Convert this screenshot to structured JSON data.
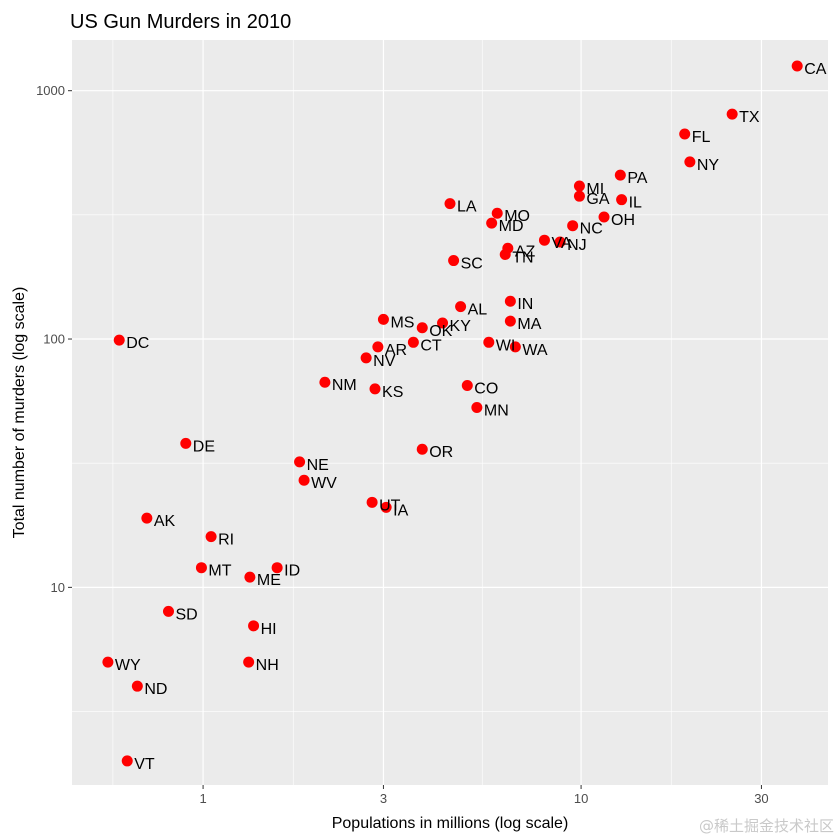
{
  "watermark": "@稀土掘金技术社区",
  "chart_data": {
    "type": "scatter",
    "title": "US Gun Murders in 2010",
    "xlabel": "Populations in millions (log scale)",
    "ylabel": "Total number of murders (log scale)",
    "x_scale": "log10",
    "y_scale": "log10",
    "xlim": [
      0.45,
      45
    ],
    "ylim": [
      1.6,
      1600
    ],
    "x_ticks": [
      1,
      3,
      10,
      30
    ],
    "x_tick_labels": [
      "1",
      "3",
      "10",
      "30"
    ],
    "y_ticks": [
      10,
      100,
      1000
    ],
    "y_tick_labels": [
      "10",
      "100",
      "1000"
    ],
    "grid": true,
    "legend": "none",
    "point_color": "#ff0000",
    "panel_color": "#ebebeb",
    "points": [
      {
        "label": "CA",
        "x": 37.3,
        "y": 1257
      },
      {
        "label": "TX",
        "x": 25.1,
        "y": 805
      },
      {
        "label": "FL",
        "x": 18.8,
        "y": 669
      },
      {
        "label": "NY",
        "x": 19.4,
        "y": 517
      },
      {
        "label": "PA",
        "x": 12.7,
        "y": 457
      },
      {
        "label": "MI",
        "x": 9.9,
        "y": 413
      },
      {
        "label": "GA",
        "x": 9.9,
        "y": 376
      },
      {
        "label": "IL",
        "x": 12.8,
        "y": 364
      },
      {
        "label": "LA",
        "x": 4.5,
        "y": 351
      },
      {
        "label": "MO",
        "x": 6.0,
        "y": 321
      },
      {
        "label": "OH",
        "x": 11.5,
        "y": 310
      },
      {
        "label": "MD",
        "x": 5.8,
        "y": 293
      },
      {
        "label": "NC",
        "x": 9.5,
        "y": 286
      },
      {
        "label": "VA",
        "x": 8.0,
        "y": 250
      },
      {
        "label": "NJ",
        "x": 8.8,
        "y": 246
      },
      {
        "label": "AZ",
        "x": 6.4,
        "y": 232
      },
      {
        "label": "TN",
        "x": 6.3,
        "y": 219
      },
      {
        "label": "SC",
        "x": 4.6,
        "y": 207
      },
      {
        "label": "IN",
        "x": 6.5,
        "y": 142
      },
      {
        "label": "AL",
        "x": 4.8,
        "y": 135
      },
      {
        "label": "MA",
        "x": 6.5,
        "y": 118
      },
      {
        "label": "MS",
        "x": 3.0,
        "y": 120
      },
      {
        "label": "OK",
        "x": 3.8,
        "y": 111
      },
      {
        "label": "KY",
        "x": 4.3,
        "y": 116
      },
      {
        "label": "DC",
        "x": 0.6,
        "y": 99
      },
      {
        "label": "CT",
        "x": 3.6,
        "y": 97
      },
      {
        "label": "WI",
        "x": 5.7,
        "y": 97
      },
      {
        "label": "WA",
        "x": 6.7,
        "y": 93
      },
      {
        "label": "AR",
        "x": 2.9,
        "y": 93
      },
      {
        "label": "NV",
        "x": 2.7,
        "y": 84
      },
      {
        "label": "NM",
        "x": 2.1,
        "y": 67
      },
      {
        "label": "CO",
        "x": 5.0,
        "y": 65
      },
      {
        "label": "KS",
        "x": 2.85,
        "y": 63
      },
      {
        "label": "MN",
        "x": 5.3,
        "y": 53
      },
      {
        "label": "DE",
        "x": 0.9,
        "y": 38
      },
      {
        "label": "OR",
        "x": 3.8,
        "y": 36
      },
      {
        "label": "NE",
        "x": 1.8,
        "y": 32
      },
      {
        "label": "WV",
        "x": 1.85,
        "y": 27
      },
      {
        "label": "UT",
        "x": 2.8,
        "y": 22
      },
      {
        "label": "IA",
        "x": 3.05,
        "y": 21
      },
      {
        "label": "AK",
        "x": 0.71,
        "y": 19
      },
      {
        "label": "RI",
        "x": 1.05,
        "y": 16
      },
      {
        "label": "MT",
        "x": 0.99,
        "y": 12
      },
      {
        "label": "ID",
        "x": 1.57,
        "y": 12
      },
      {
        "label": "ME",
        "x": 1.33,
        "y": 11
      },
      {
        "label": "SD",
        "x": 0.81,
        "y": 8
      },
      {
        "label": "HI",
        "x": 1.36,
        "y": 7
      },
      {
        "label": "WY",
        "x": 0.56,
        "y": 5
      },
      {
        "label": "NH",
        "x": 1.32,
        "y": 5
      },
      {
        "label": "ND",
        "x": 0.67,
        "y": 4
      },
      {
        "label": "VT",
        "x": 0.63,
        "y": 2
      }
    ]
  }
}
